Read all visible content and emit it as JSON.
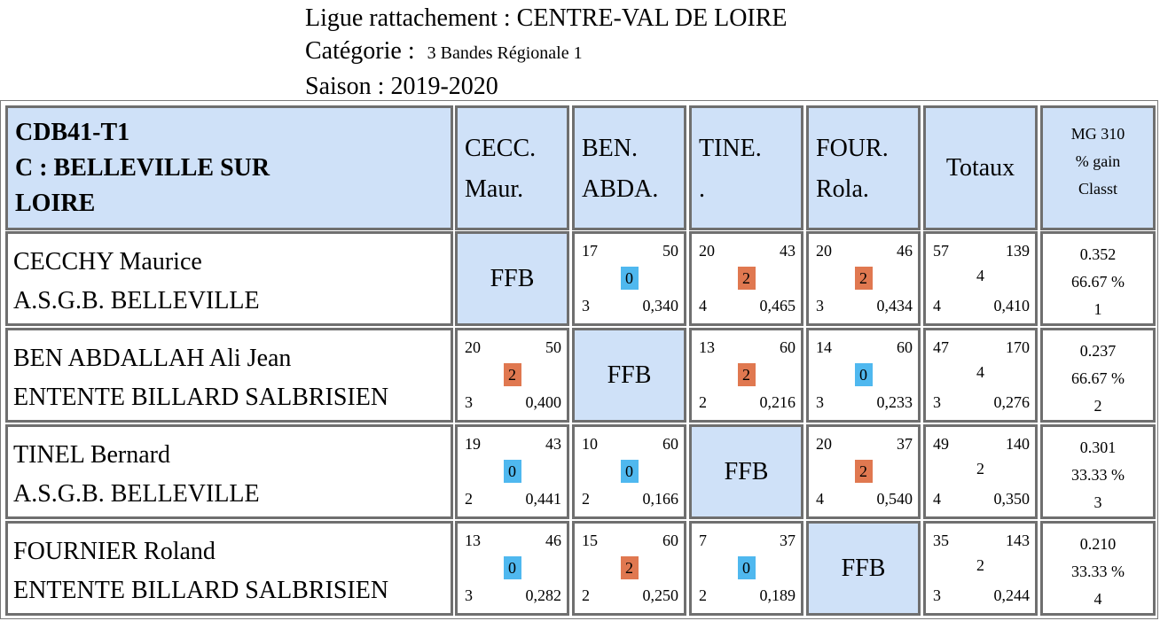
{
  "header": {
    "ligue": "Ligue rattachement : CENTRE-VAL DE LOIRE",
    "categorie_label": "Catégorie :",
    "categorie_value": "3 Bandes Régionale 1",
    "saison": "Saison : 2019-2020"
  },
  "team": {
    "code": "CDB41-T1",
    "club_line1": "C : BELLEVILLE SUR",
    "club_line2": "LOIRE"
  },
  "columns": [
    {
      "line1": "CECC.",
      "line2": "Maur."
    },
    {
      "line1": "BEN.",
      "line2": "ABDA."
    },
    {
      "line1": "TINE.",
      "line2": "."
    },
    {
      "line1": "FOUR.",
      "line2": "Rola."
    }
  ],
  "totals_label": "Totaux",
  "mg_header": {
    "line1": "MG 310",
    "line2": "% gain",
    "line3": "Classt"
  },
  "ffb_label": "FFB",
  "players": [
    {
      "name": "CECCHY Maurice",
      "club": "A.S.G.B. BELLEVILLE",
      "results": [
        null,
        {
          "points": "17",
          "distance": "50",
          "match_points": "0",
          "innings": "3",
          "average": "0,340"
        },
        {
          "points": "20",
          "distance": "43",
          "match_points": "2",
          "innings": "4",
          "average": "0,465"
        },
        {
          "points": "20",
          "distance": "46",
          "match_points": "2",
          "innings": "3",
          "average": "0,434"
        }
      ],
      "totals": {
        "points": "57",
        "distance": "139",
        "match_points": "4",
        "innings": "4",
        "average": "0,410"
      },
      "mg": "0.352",
      "pct": "66.67 %",
      "rank": "1"
    },
    {
      "name": "BEN ABDALLAH Ali Jean",
      "club": "ENTENTE BILLARD SALBRISIEN",
      "results": [
        {
          "points": "20",
          "distance": "50",
          "match_points": "2",
          "innings": "3",
          "average": "0,400"
        },
        null,
        {
          "points": "13",
          "distance": "60",
          "match_points": "2",
          "innings": "2",
          "average": "0,216"
        },
        {
          "points": "14",
          "distance": "60",
          "match_points": "0",
          "innings": "3",
          "average": "0,233"
        }
      ],
      "totals": {
        "points": "47",
        "distance": "170",
        "match_points": "4",
        "innings": "3",
        "average": "0,276"
      },
      "mg": "0.237",
      "pct": "66.67 %",
      "rank": "2"
    },
    {
      "name": "TINEL Bernard",
      "club": "A.S.G.B. BELLEVILLE",
      "results": [
        {
          "points": "19",
          "distance": "43",
          "match_points": "0",
          "innings": "2",
          "average": "0,441"
        },
        {
          "points": "10",
          "distance": "60",
          "match_points": "0",
          "innings": "2",
          "average": "0,166"
        },
        null,
        {
          "points": "20",
          "distance": "37",
          "match_points": "2",
          "innings": "4",
          "average": "0,540"
        }
      ],
      "totals": {
        "points": "49",
        "distance": "140",
        "match_points": "2",
        "innings": "4",
        "average": "0,350"
      },
      "mg": "0.301",
      "pct": "33.33 %",
      "rank": "3"
    },
    {
      "name": "FOURNIER Roland",
      "club": "ENTENTE BILLARD SALBRISIEN",
      "results": [
        {
          "points": "13",
          "distance": "46",
          "match_points": "0",
          "innings": "3",
          "average": "0,282"
        },
        {
          "points": "15",
          "distance": "60",
          "match_points": "2",
          "innings": "2",
          "average": "0,250"
        },
        {
          "points": "7",
          "distance": "37",
          "match_points": "0",
          "innings": "2",
          "average": "0,189"
        },
        null
      ],
      "totals": {
        "points": "35",
        "distance": "143",
        "match_points": "2",
        "innings": "3",
        "average": "0,244"
      },
      "mg": "0.210",
      "pct": "33.33 %",
      "rank": "4"
    }
  ],
  "colors": {
    "header_bg": "#cfe1f8",
    "win_badge": "#e07850",
    "loss_badge": "#4fb8ef",
    "border": "#6f6f6f"
  }
}
